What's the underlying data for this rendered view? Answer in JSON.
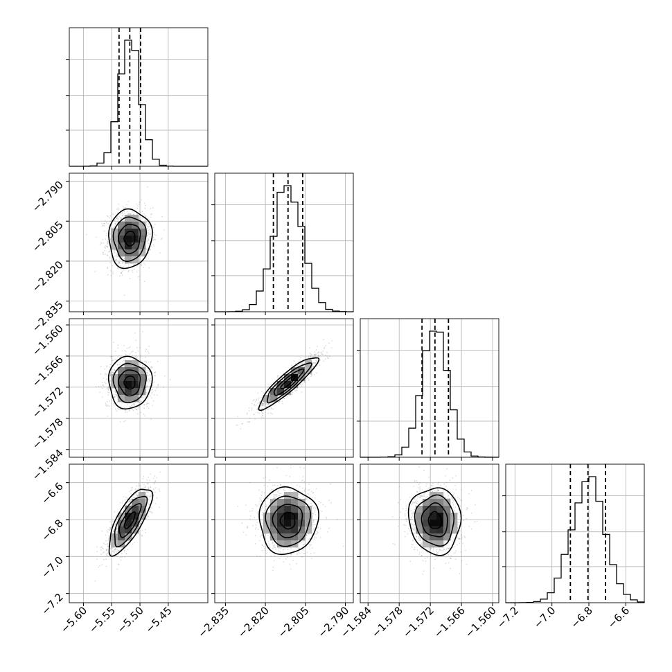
{
  "chart_data": {
    "type": "corner",
    "parameters": [
      {
        "index": 0,
        "range": [
          -5.625,
          -5.38
        ],
        "ticks": [
          "−5.60",
          "−5.55",
          "−5.50",
          "−5.45"
        ],
        "tick_values": [
          -5.6,
          -5.55,
          -5.5,
          -5.45
        ],
        "mean": -5.518,
        "sd": 0.019,
        "quantiles": [
          -5.537,
          -5.518,
          -5.499
        ]
      },
      {
        "index": 1,
        "range": [
          -2.839,
          -2.787
        ],
        "ticks": [
          "−2.835",
          "−2.820",
          "−2.805",
          "−2.790"
        ],
        "tick_values": [
          -2.835,
          -2.82,
          -2.805,
          -2.79
        ],
        "mean": -2.8115,
        "sd": 0.0055,
        "quantiles": [
          -2.817,
          -2.8115,
          -2.806
        ]
      },
      {
        "index": 2,
        "range": [
          -1.5855,
          -1.5588
        ],
        "ticks": [
          "−1.584",
          "−1.578",
          "−1.572",
          "−1.566",
          "−1.560"
        ],
        "tick_values": [
          -1.584,
          -1.578,
          -1.572,
          -1.566,
          -1.56
        ],
        "mean": -1.5711,
        "sd": 0.0025,
        "quantiles": [
          -1.5736,
          -1.5711,
          -1.5685
        ]
      },
      {
        "index": 3,
        "range": [
          -7.25,
          -6.5
        ],
        "ticks": [
          "−7.2",
          "−7.0",
          "−6.8",
          "−6.6"
        ],
        "tick_values": [
          -7.2,
          -7.0,
          -6.8,
          -6.6
        ],
        "mean": -6.805,
        "sd": 0.09,
        "quantiles": [
          -6.9,
          -6.805,
          -6.71
        ]
      }
    ],
    "correlations": [
      {
        "pair": [
          0,
          1
        ],
        "rho": 0.05
      },
      {
        "pair": [
          0,
          2
        ],
        "rho": 0.0
      },
      {
        "pair": [
          1,
          2
        ],
        "rho": 0.9
      },
      {
        "pair": [
          0,
          3
        ],
        "rho": 0.75
      },
      {
        "pair": [
          1,
          3
        ],
        "rho": 0.02
      },
      {
        "pair": [
          2,
          3
        ],
        "rho": -0.05
      }
    ],
    "quantile_lines": [
      0.16,
      0.5,
      0.84
    ],
    "contour_levels_sigma": [
      0.5,
      1.0,
      1.5,
      2.0
    ],
    "grid": true,
    "colors": {
      "line": "#000000",
      "points": "#808080",
      "grid": "#b0b0b0",
      "density_max": "#000000"
    }
  }
}
